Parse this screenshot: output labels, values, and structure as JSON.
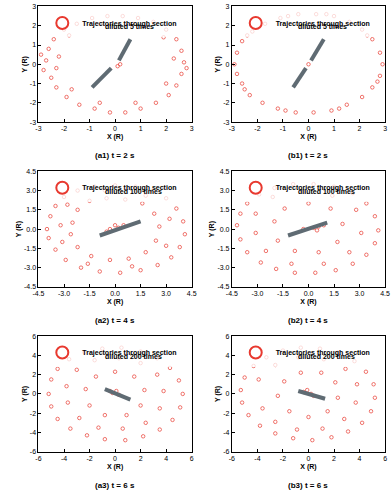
{
  "chart_data": [
    {
      "type": "scatter",
      "title": "(a1) t = 2 s",
      "x_label": "X (R)",
      "y_label": "Y (R)",
      "annotations": [
        "diluted 5 times"
      ],
      "grid": false,
      "xlim": [
        -3,
        3
      ],
      "ylim": [
        -3,
        3
      ],
      "xticks": [
        -3,
        -2,
        -1,
        0,
        1,
        2,
        3
      ],
      "yticks": [
        -3,
        -2,
        -1,
        0,
        1,
        2,
        3
      ],
      "series": [
        {
          "name": "Trajectories through section",
          "type": "scatter",
          "marker": "circle-open",
          "color": "#e8392f",
          "x": [
            -2.7,
            -2.8,
            -2.6,
            -2.4,
            -2.0,
            -1.5,
            -0.9,
            -0.3,
            0.3,
            0.9,
            1.5,
            2.0,
            2.4,
            2.6,
            2.7,
            2.6,
            2.4,
            2.1,
            1.6,
            1.0,
            0.4,
            -0.2,
            -0.8,
            -1.4,
            -1.9,
            -2.3,
            -2.5,
            -2.2,
            -2.3,
            -1.8,
            -0.6,
            0.7,
            1.9,
            2.3,
            2.0,
            0.8,
            -0.6,
            -1.7,
            2.8,
            -2.9,
            0.1,
            0.2
          ],
          "y": [
            0.2,
            -0.3,
            0.8,
            1.3,
            1.8,
            2.1,
            2.4,
            2.5,
            2.5,
            2.4,
            2.2,
            1.8,
            1.3,
            0.7,
            0.1,
            -0.5,
            -1.1,
            -1.6,
            -2.0,
            -2.3,
            -2.5,
            -2.5,
            -2.3,
            -2.1,
            -1.7,
            -1.2,
            -0.7,
            0.4,
            -0.2,
            1.5,
            2.1,
            2.1,
            1.4,
            0.3,
            -1.0,
            -2.0,
            -2.0,
            -1.3,
            -0.2,
            0.5,
            -0.1,
            0.0
          ]
        },
        {
          "type": "line",
          "line_style": "solid",
          "color": "#5f6b73",
          "x": [
            -0.9,
            -0.15,
            null,
            0.15,
            0.6
          ],
          "y": [
            -1.2,
            -0.2,
            null,
            0.2,
            1.3
          ]
        }
      ]
    },
    {
      "type": "scatter",
      "title": "(b1) t = 2 s",
      "x_label": "X (R)",
      "y_label": "Y (R)",
      "annotations": [
        "diluted 5 times"
      ],
      "grid": false,
      "xlim": [
        -3,
        3
      ],
      "ylim": [
        -3,
        3
      ],
      "xticks": [
        -3,
        -2,
        -1,
        0,
        1,
        2,
        3
      ],
      "yticks": [
        -3,
        -2,
        -1,
        0,
        1,
        2,
        3
      ],
      "series": [
        {
          "name": "Trajectories through section",
          "type": "scatter",
          "marker": "circle-open",
          "color": "#e8392f",
          "x": [
            -2.9,
            -2.8,
            -2.6,
            -2.2,
            -1.7,
            -1.1,
            -0.4,
            0.3,
            1.0,
            1.6,
            2.1,
            2.5,
            2.8,
            2.9,
            2.8,
            2.5,
            2.1,
            1.5,
            0.9,
            0.2,
            -0.5,
            -1.2,
            -1.8,
            -2.3,
            -2.6,
            -2.8,
            -2.4,
            -0.8,
            0.7,
            2.3,
            2.7,
            1.2,
            -0.9,
            -2.5,
            0.0
          ],
          "y": [
            0.0,
            0.6,
            1.2,
            1.7,
            2.1,
            2.4,
            2.6,
            2.6,
            2.5,
            2.2,
            1.8,
            1.3,
            0.6,
            0.0,
            -0.6,
            -1.2,
            -1.7,
            -2.1,
            -2.4,
            -2.5,
            -2.5,
            -2.3,
            -2.0,
            -1.6,
            -1.0,
            -0.5,
            1.5,
            2.5,
            2.6,
            1.5,
            -0.9,
            -2.3,
            -2.4,
            -1.3,
            0.0
          ]
        },
        {
          "type": "line",
          "line_style": "solid",
          "color": "#5f6b73",
          "x": [
            -0.6,
            -0.1,
            null,
            0.1,
            0.6
          ],
          "y": [
            -1.2,
            -0.2,
            null,
            0.2,
            1.3
          ]
        }
      ]
    },
    {
      "type": "scatter",
      "title": "(a2) t = 4 s",
      "x_label": "X (R)",
      "y_label": "Y (R)",
      "annotations": [
        "diluted 100 times"
      ],
      "grid": false,
      "xlim": [
        -4.5,
        4.5
      ],
      "ylim": [
        -4.5,
        4.5
      ],
      "xticks": [
        -4.5,
        {
          "value": -3,
          "label": "-3.0"
        },
        -1.5,
        {
          "value": 0,
          "label": "0.0"
        },
        1.5,
        {
          "value": 3,
          "label": "3.0"
        },
        4.5
      ],
      "yticks": [
        -4.5,
        {
          "value": -3,
          "label": "-3.0"
        },
        -1.5,
        {
          "value": 0,
          "label": "0.0"
        },
        1.5,
        {
          "value": 3,
          "label": "3.0"
        },
        4.5
      ],
      "series": [
        {
          "name": "Trajectories through section",
          "type": "scatter",
          "marker": "circle-open",
          "color": "#e8392f",
          "x": [
            -4.0,
            -3.8,
            -3.5,
            -3.0,
            -2.2,
            -1.2,
            0.0,
            1.2,
            2.2,
            3.0,
            3.6,
            4.0,
            4.1,
            3.8,
            3.3,
            2.5,
            1.5,
            0.3,
            -0.9,
            -2.0,
            -2.9,
            -3.5,
            -3.9,
            -2.5,
            -2.2,
            -1.5,
            -0.5,
            0.6,
            1.6,
            2.3,
            2.6,
            2.4,
            1.8,
            0.8,
            -0.3,
            -1.4,
            -2.2,
            -2.6,
            -3.2,
            -2.8,
            -0.6,
            1.8,
            3.2,
            3.0,
            1.0,
            -1.6,
            -3.1,
            -0.3,
            0.2,
            0.5,
            -0.5,
            0.0
          ],
          "y": [
            0.0,
            1.0,
            1.8,
            2.5,
            3.0,
            3.3,
            3.4,
            3.3,
            3.0,
            2.4,
            1.6,
            0.6,
            -0.4,
            -1.4,
            -2.2,
            -2.8,
            -3.2,
            -3.4,
            -3.3,
            -3.0,
            -2.4,
            -1.6,
            -0.7,
            0.5,
            1.5,
            2.2,
            2.4,
            2.3,
            2.0,
            1.2,
            0.2,
            -0.9,
            -1.8,
            -2.3,
            -2.4,
            -2.1,
            -1.4,
            -0.4,
            0.3,
            1.9,
            3.0,
            2.6,
            0.8,
            -1.3,
            -2.9,
            -2.7,
            -1.0,
            0.0,
            0.1,
            0.3,
            -0.2,
            0.3
          ]
        },
        {
          "type": "line",
          "line_style": "solid",
          "color": "#5f6b73",
          "x": [
            -0.9,
            1.5
          ],
          "y": [
            -0.5,
            0.6
          ]
        }
      ]
    },
    {
      "type": "scatter",
      "title": "(b2) t = 4 s",
      "x_label": "X (R)",
      "y_label": "Y (R)",
      "annotations": [
        "diluted 100 times"
      ],
      "grid": false,
      "xlim": [
        -4.5,
        4.5
      ],
      "ylim": [
        -4.5,
        4.5
      ],
      "xticks": [
        -4.5,
        {
          "value": -3,
          "label": "-3.0"
        },
        -1.5,
        {
          "value": 0,
          "label": "0.0"
        },
        1.5,
        {
          "value": 3,
          "label": "3.0"
        },
        4.5
      ],
      "yticks": [
        -4.5,
        {
          "value": -3,
          "label": "-3.0"
        },
        -1.5,
        {
          "value": 0,
          "label": "0.0"
        },
        1.5,
        {
          "value": 3,
          "label": "3.0"
        },
        4.5
      ],
      "series": [
        {
          "name": "Trajectories through section",
          "type": "scatter",
          "marker": "circle-open",
          "color": "#e8392f",
          "x": [
            -4.2,
            -4.0,
            -3.6,
            -2.9,
            -2.0,
            -0.9,
            0.3,
            1.5,
            2.6,
            3.4,
            3.9,
            4.1,
            3.9,
            3.4,
            2.6,
            1.6,
            0.4,
            -0.8,
            -1.9,
            -2.8,
            -3.6,
            -4.0,
            -3.1,
            -2.1,
            -0.3,
            1.4,
            2.8,
            3.1,
            2.4,
            0.9,
            -1.0,
            -2.5,
            -3.1,
            -2.0,
            -1.4,
            0.0,
            1.3,
            2.0,
            1.7,
            0.6,
            -0.8,
            -1.8,
            0.3,
            0.6,
            0.9,
            0.5,
            -0.3
          ],
          "y": [
            0.3,
            1.2,
            2.0,
            2.7,
            3.2,
            3.5,
            3.5,
            3.3,
            2.8,
            2.0,
            1.0,
            -0.1,
            -1.1,
            -2.0,
            -2.7,
            -3.2,
            -3.4,
            -3.4,
            -3.1,
            -2.6,
            -1.8,
            -0.8,
            1.2,
            2.5,
            2.9,
            2.6,
            1.5,
            -0.3,
            -1.8,
            -2.7,
            -2.7,
            -1.7,
            -0.3,
            0.6,
            1.6,
            2.0,
            1.6,
            0.4,
            -1.0,
            -1.8,
            -1.7,
            -0.9,
            0.1,
            0.2,
            0.3,
            -0.1,
            0.0
          ]
        },
        {
          "type": "line",
          "line_style": "solid",
          "color": "#5f6b73",
          "x": [
            -1.2,
            1.1
          ],
          "y": [
            -0.5,
            0.5
          ]
        }
      ]
    },
    {
      "type": "scatter",
      "title": "(a3) t = 6 s",
      "x_label": "X (R)",
      "y_label": "Y (R)",
      "annotations": [
        "diluted 200 times"
      ],
      "grid": false,
      "xlim": [
        -6,
        6
      ],
      "ylim": [
        -6,
        6
      ],
      "xticks": [
        -6,
        -4,
        -2,
        0,
        2,
        4,
        6
      ],
      "yticks": [
        -6,
        -4,
        -2,
        0,
        2,
        4,
        6
      ],
      "series": [
        {
          "name": "Trajectories through section",
          "type": "scatter",
          "marker": "circle-open",
          "color": "#e8392f",
          "x": [
            -5.2,
            -5.0,
            -4.5,
            -3.6,
            -2.4,
            -1.0,
            0.5,
            2.0,
            3.3,
            4.3,
            5.0,
            5.3,
            5.1,
            4.5,
            3.5,
            2.2,
            0.8,
            -0.8,
            -2.2,
            -3.5,
            -4.5,
            -5.0,
            -3.8,
            -3.0,
            -1.6,
            0.3,
            2.0,
            3.3,
            3.8,
            3.5,
            2.4,
            0.6,
            -1.3,
            -2.8,
            -3.7,
            -2.3,
            -1.5,
            0.0,
            1.5,
            2.3,
            2.0,
            0.9,
            -0.8,
            -2.0,
            -0.2,
            0.1,
            0.3,
            -0.4
          ],
          "y": [
            0.0,
            1.5,
            2.6,
            3.6,
            4.3,
            4.7,
            4.8,
            4.4,
            3.7,
            2.7,
            1.4,
            0.0,
            -1.4,
            -2.7,
            -3.7,
            -4.4,
            -4.8,
            -4.7,
            -4.3,
            -3.6,
            -2.6,
            -1.3,
            0.8,
            2.5,
            3.5,
            3.7,
            3.2,
            2.0,
            0.3,
            -1.5,
            -3.0,
            -3.6,
            -3.5,
            -2.5,
            -0.9,
            0.5,
            1.8,
            2.3,
            1.8,
            0.4,
            -1.2,
            -2.2,
            -2.2,
            -1.2,
            0.1,
            0.3,
            -0.1,
            0.3
          ]
        },
        {
          "type": "line",
          "line_style": "solid",
          "color": "#5f6b73",
          "x": [
            -0.8,
            1.2
          ],
          "y": [
            0.5,
            -0.6
          ]
        }
      ]
    },
    {
      "type": "scatter",
      "title": "(b3) t = 6 s",
      "x_label": "X (R)",
      "y_label": "Y (R)",
      "annotations": [
        "diluted 200 times"
      ],
      "grid": false,
      "xlim": [
        -6,
        6
      ],
      "ylim": [
        -6,
        6
      ],
      "xticks": [
        -6,
        -4,
        -2,
        0,
        2,
        4,
        6
      ],
      "yticks": [
        -6,
        -4,
        -2,
        0,
        2,
        4,
        6
      ],
      "series": [
        {
          "name": "Trajectories through section",
          "type": "scatter",
          "marker": "circle-open",
          "color": "#e8392f",
          "x": [
            -5.3,
            -5.0,
            -4.3,
            -3.3,
            -2.0,
            -0.6,
            0.9,
            2.3,
            3.6,
            4.5,
            5.1,
            5.2,
            4.9,
            4.2,
            3.1,
            1.8,
            0.3,
            -1.2,
            -2.6,
            -3.8,
            -4.7,
            -5.2,
            -3.9,
            -2.6,
            -0.8,
            1.2,
            2.9,
            3.8,
            3.7,
            2.8,
            1.1,
            -0.9,
            -2.6,
            -3.6,
            -2.4,
            -1.9,
            -0.6,
            1.0,
            2.1,
            2.3,
            1.5,
            0.0,
            -1.5,
            -0.4,
            -0.1,
            0.2,
            0.4
          ],
          "y": [
            0.4,
            1.7,
            2.9,
            3.8,
            4.5,
            4.8,
            4.7,
            4.3,
            3.4,
            2.3,
            1.0,
            -0.4,
            -1.8,
            -3.0,
            -3.9,
            -4.5,
            -4.8,
            -4.6,
            -4.1,
            -3.3,
            -2.2,
            -0.9,
            1.5,
            3.0,
            3.8,
            3.6,
            2.6,
            1.0,
            -0.9,
            -2.6,
            -3.6,
            -3.7,
            -2.9,
            -1.5,
            -0.2,
            1.3,
            2.2,
            2.2,
            1.2,
            -0.4,
            -1.8,
            -2.4,
            -1.8,
            0.2,
            0.4,
            0.0,
            -0.2
          ]
        },
        {
          "type": "line",
          "line_style": "solid",
          "color": "#5f6b73",
          "x": [
            -0.8,
            1.3
          ],
          "y": [
            0.3,
            -0.5
          ]
        }
      ]
    }
  ]
}
